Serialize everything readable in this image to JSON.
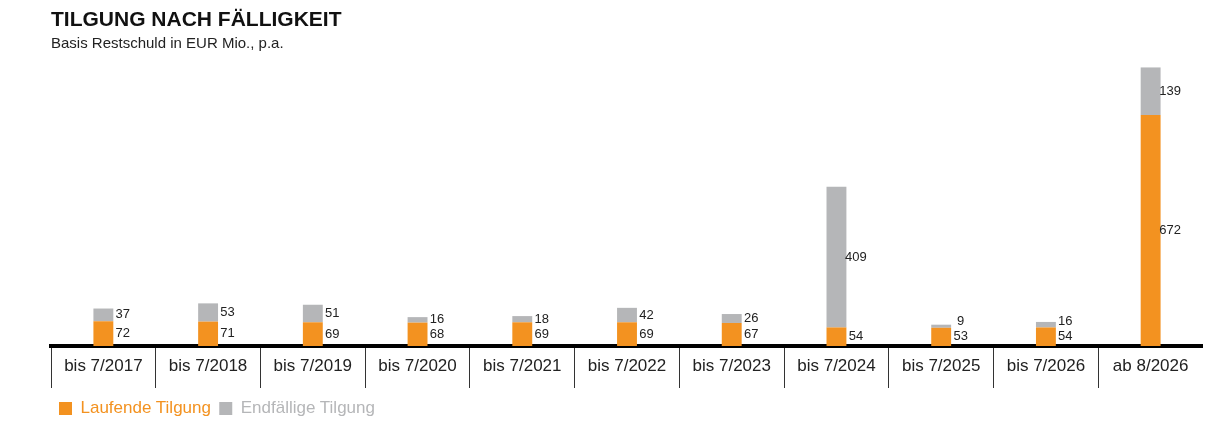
{
  "chart_data": {
    "type": "bar",
    "title": "TILGUNG NACH FÄLLIGKEIT",
    "subtitle": "Basis Restschuld in EUR Mio., p.a.",
    "categories": [
      "bis 7/2017",
      "bis 7/2018",
      "bis 7/2019",
      "bis 7/2020",
      "bis 7/2021",
      "bis 7/2022",
      "bis 7/2023",
      "bis 7/2024",
      "bis 7/2025",
      "bis 7/2026",
      "ab 8/2026"
    ],
    "series": [
      {
        "name": "Laufende Tilgung",
        "color": "#f39220",
        "values": [
          72,
          71,
          69,
          68,
          69,
          69,
          67,
          54,
          53,
          54,
          672
        ]
      },
      {
        "name": "Endfällige Tilgung",
        "color": "#b5b6b8",
        "values": [
          37,
          53,
          51,
          16,
          18,
          42,
          26,
          409,
          9,
          16,
          139
        ]
      }
    ],
    "stacked": true,
    "data_labels": true,
    "legend": "bottom left",
    "tick_labels": "x"
  }
}
